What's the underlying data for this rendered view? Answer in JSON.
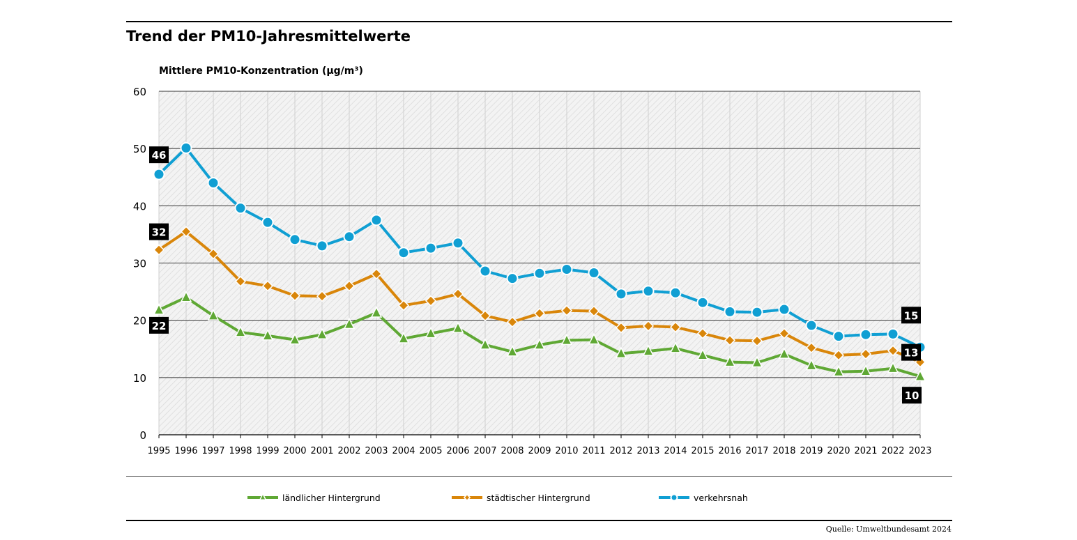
{
  "chart_data": {
    "type": "line",
    "title": "Trend der PM10-Jahresmittelwerte",
    "ylabel": "Mittlere PM10-Konzentration (µg/m³)",
    "xlabel": "",
    "ylim": [
      0,
      60
    ],
    "yticks": [
      0,
      10,
      20,
      30,
      40,
      50,
      60
    ],
    "grid": true,
    "legend_position": "bottom",
    "x": [
      "1995",
      "1996",
      "1997",
      "1998",
      "1999",
      "2000",
      "2001",
      "2002",
      "2003",
      "2004",
      "2005",
      "2006",
      "2007",
      "2008",
      "2009",
      "2010",
      "2011",
      "2012",
      "2013",
      "2014",
      "2015",
      "2016",
      "2017",
      "2018",
      "2019",
      "2020",
      "2021",
      "2022",
      "2023"
    ],
    "series": [
      {
        "name": "ländlicher Hintergrund",
        "color": "#5fa834",
        "marker": "triangle",
        "values": [
          21.8,
          24.0,
          20.8,
          17.9,
          17.3,
          16.6,
          17.5,
          19.3,
          21.3,
          16.8,
          17.7,
          18.6,
          15.7,
          14.5,
          15.7,
          16.5,
          16.6,
          14.2,
          14.6,
          15.1,
          13.9,
          12.7,
          12.6,
          14.1,
          12.1,
          11.0,
          11.1,
          11.6,
          10.2
        ],
        "labels": [
          {
            "index": 0,
            "text": "22"
          },
          {
            "index": 28,
            "text": "10"
          }
        ]
      },
      {
        "name": "städtischer Hintergrund",
        "color": "#d9860a",
        "marker": "diamond",
        "values": [
          32.3,
          35.5,
          31.6,
          26.8,
          26.0,
          24.3,
          24.2,
          26.0,
          28.1,
          22.6,
          23.4,
          24.6,
          20.8,
          19.7,
          21.2,
          21.7,
          21.6,
          18.7,
          19.0,
          18.8,
          17.7,
          16.5,
          16.4,
          17.7,
          15.2,
          13.9,
          14.1,
          14.7,
          12.7
        ],
        "labels": [
          {
            "index": 0,
            "text": "32"
          },
          {
            "index": 28,
            "text": "13"
          }
        ]
      },
      {
        "name": "verkehrsnah",
        "color": "#109fd3",
        "marker": "circle",
        "values": [
          45.5,
          50.1,
          44.0,
          39.6,
          37.1,
          34.1,
          33.0,
          34.6,
          37.5,
          31.8,
          32.6,
          33.5,
          28.6,
          27.3,
          28.2,
          28.9,
          28.3,
          24.6,
          25.1,
          24.8,
          23.1,
          21.5,
          21.4,
          21.9,
          19.1,
          17.2,
          17.5,
          17.6,
          15.3
        ],
        "labels": [
          {
            "index": 0,
            "text": "46"
          },
          {
            "index": 28,
            "text": "15"
          }
        ]
      }
    ]
  },
  "source": "Quelle: Umweltbundesamt 2024"
}
